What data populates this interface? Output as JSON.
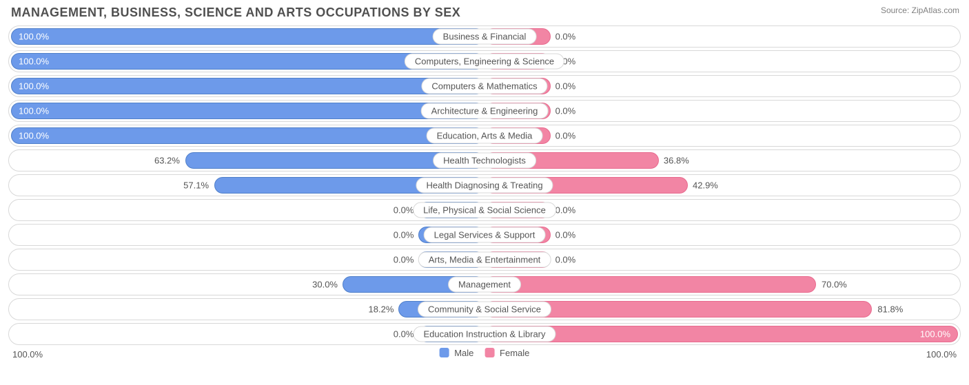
{
  "title": "MANAGEMENT, BUSINESS, SCIENCE AND ARTS OCCUPATIONS BY SEX",
  "source_prefix": "Source: ",
  "source_name": "ZipAtlas.com",
  "colors": {
    "male_fill": "#6d9aea",
    "male_border": "#4f7fc9",
    "female_fill": "#f285a4",
    "female_border": "#e86a8e",
    "row_border": "#d8d8d8",
    "text": "#555555",
    "title_text": "#505050",
    "source_text": "#808080",
    "background": "#ffffff"
  },
  "chart": {
    "type": "diverging-bar",
    "axis_left_label": "100.0%",
    "axis_right_label": "100.0%",
    "legend": [
      {
        "label": "Male",
        "color": "#6d9aea"
      },
      {
        "label": "Female",
        "color": "#f285a4"
      }
    ],
    "min_bar_pct_visual": 14,
    "rows": [
      {
        "category": "Business & Financial",
        "male": 100.0,
        "female": 0.0
      },
      {
        "category": "Computers, Engineering & Science",
        "male": 100.0,
        "female": 0.0
      },
      {
        "category": "Computers & Mathematics",
        "male": 100.0,
        "female": 0.0
      },
      {
        "category": "Architecture & Engineering",
        "male": 100.0,
        "female": 0.0
      },
      {
        "category": "Education, Arts & Media",
        "male": 100.0,
        "female": 0.0
      },
      {
        "category": "Health Technologists",
        "male": 63.2,
        "female": 36.8
      },
      {
        "category": "Health Diagnosing & Treating",
        "male": 57.1,
        "female": 42.9
      },
      {
        "category": "Life, Physical & Social Science",
        "male": 0.0,
        "female": 0.0
      },
      {
        "category": "Legal Services & Support",
        "male": 0.0,
        "female": 0.0
      },
      {
        "category": "Arts, Media & Entertainment",
        "male": 0.0,
        "female": 0.0
      },
      {
        "category": "Management",
        "male": 30.0,
        "female": 70.0
      },
      {
        "category": "Community & Social Service",
        "male": 18.2,
        "female": 81.8
      },
      {
        "category": "Education Instruction & Library",
        "male": 0.0,
        "female": 100.0
      }
    ]
  }
}
